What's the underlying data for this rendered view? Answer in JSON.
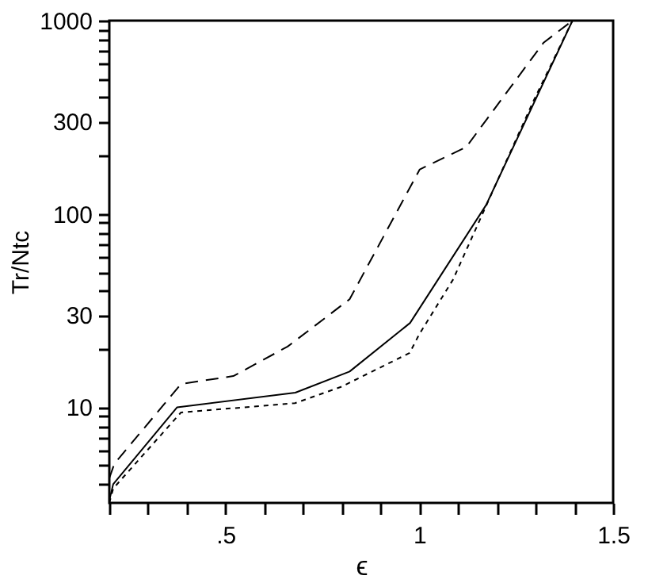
{
  "chart_data": {
    "type": "line",
    "xlabel": "ϵ",
    "ylabel": "Tr/Ntc",
    "xlim": [
      0.2,
      1.5
    ],
    "ylim": [
      3.2,
      1000
    ],
    "log": "y",
    "grid": false,
    "marker": "none",
    "xticks": [
      {
        "value": 0.2,
        "label": null
      },
      {
        "value": 0.3,
        "label": null
      },
      {
        "value": 0.4,
        "label": null
      },
      {
        "value": 0.5,
        "label": ".5"
      },
      {
        "value": 0.6,
        "label": null
      },
      {
        "value": 0.7,
        "label": null
      },
      {
        "value": 0.8,
        "label": null
      },
      {
        "value": 0.9,
        "label": null
      },
      1,
      {
        "value": 1.1,
        "label": null
      },
      {
        "value": 1.2,
        "label": null
      },
      {
        "value": 1.3,
        "label": null
      },
      {
        "value": 1.4,
        "label": null
      },
      1.5
    ],
    "yticks": [
      {
        "value": 4,
        "label": null
      },
      {
        "value": 5,
        "label": null
      },
      {
        "value": 6,
        "label": null
      },
      {
        "value": 7,
        "label": null
      },
      {
        "value": 8,
        "label": null
      },
      {
        "value": 9,
        "label": null
      },
      10,
      {
        "value": 20,
        "label": null
      },
      30,
      {
        "value": 40,
        "label": null
      },
      {
        "value": 50,
        "label": null
      },
      {
        "value": 60,
        "label": null
      },
      {
        "value": 70,
        "label": null
      },
      {
        "value": 80,
        "label": null
      },
      {
        "value": 90,
        "label": null
      },
      100,
      {
        "value": 200,
        "label": null
      },
      300,
      {
        "value": 400,
        "label": null
      },
      {
        "value": 500,
        "label": null
      },
      {
        "value": 600,
        "label": null
      },
      {
        "value": 700,
        "label": null
      },
      {
        "value": 800,
        "label": null
      },
      {
        "value": 900,
        "label": null
      },
      1000
    ],
    "series": [
      {
        "color": "#000000",
        "line_style": "solid",
        "x": [
          0.2,
          0.21,
          0.375,
          0.68,
          0.82,
          0.976,
          1.172,
          1.395
        ],
        "values": [
          3.3,
          4.0,
          10,
          11.9,
          15.3,
          27.3,
          111,
          1000
        ]
      },
      {
        "color": "#000000",
        "line_style": "dotted",
        "x": [
          0.2,
          0.21,
          0.385,
          0.679,
          0.8,
          0.975,
          1.0,
          1.087,
          1.208,
          1.295,
          1.395
        ],
        "values": [
          3.2,
          3.8,
          9.4,
          10.5,
          12.8,
          19.1,
          23.9,
          45.8,
          159,
          386,
          1000
        ]
      },
      {
        "color": "#000000",
        "line_style": "dashed",
        "x": [
          0.2,
          0.213,
          0.385,
          0.52,
          0.66,
          0.82,
          1.001,
          1.121,
          1.32,
          1.395
        ],
        "values": [
          4.3,
          5.1,
          13.2,
          14.5,
          20.6,
          36.2,
          170,
          222,
          767,
          1000
        ]
      }
    ]
  }
}
